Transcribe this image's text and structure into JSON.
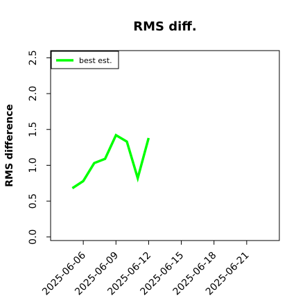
{
  "chart_data": {
    "type": "line",
    "title": "RMS diff.",
    "xlabel": "",
    "ylabel": "RMS difference",
    "x_ticks": [
      "2025-06-06",
      "2025-06-09",
      "2025-06-12",
      "2025-06-15",
      "2025-06-18",
      "2025-06-21"
    ],
    "y_ticks": [
      "0.0",
      "0.5",
      "1.0",
      "1.5",
      "2.0",
      "2.5"
    ],
    "xlim": [
      "2025-06-03",
      "2025-06-24"
    ],
    "ylim": [
      -0.05,
      2.6
    ],
    "grid": false,
    "legend_position": "top-left",
    "series": [
      {
        "name": "best est.",
        "color": "#00ff00",
        "x": [
          "2025-06-05",
          "2025-06-06",
          "2025-06-07",
          "2025-06-08",
          "2025-06-09",
          "2025-06-10",
          "2025-06-11",
          "2025-06-12"
        ],
        "values": [
          0.68,
          0.78,
          1.03,
          1.09,
          1.42,
          1.33,
          0.82,
          1.38
        ]
      }
    ]
  }
}
